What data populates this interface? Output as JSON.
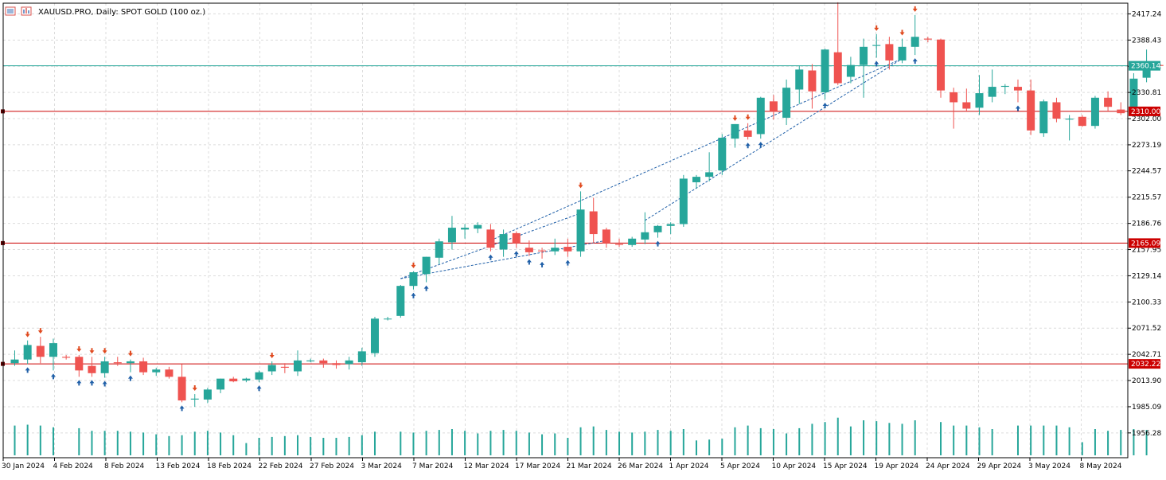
{
  "window": {
    "title": "XAUUSD.PRO, Daily:  SPOT GOLD (100 oz.)",
    "icons": [
      "chart-window-icon",
      "indicator-list-icon"
    ]
  },
  "colors": {
    "bull": "#26a69a",
    "bear": "#ef5350",
    "grid": "#dcdcdc",
    "level_line": "#cc0000",
    "bid_line": "#26a69a",
    "arrow_buy": "#1f5fa8",
    "arrow_sell": "#e04a1f",
    "trend_dash": "#1f5fa8"
  },
  "chart_data": {
    "type": "candlestick",
    "symbol": "XAUUSD.PRO",
    "timeframe": "Daily",
    "description": "SPOT GOLD (100 oz.)",
    "ylim": [
      1929,
      2429
    ],
    "grid": true,
    "y_ticks": [
      "2417.24",
      "2388.43",
      "2359.62",
      "2330.81",
      "2302.00",
      "2273.19",
      "2244.57",
      "2215.57",
      "2186.76",
      "2157.95",
      "2129.14",
      "2100.33",
      "2071.52",
      "2042.71",
      "2013.90",
      "1985.09",
      "1956.28"
    ],
    "x_ticks": [
      "30 Jan 2024",
      "4 Feb 2024",
      "8 Feb 2024",
      "13 Feb 2024",
      "18 Feb 2024",
      "22 Feb 2024",
      "27 Feb 2024",
      "3 Mar 2024",
      "7 Mar 2024",
      "12 Mar 2024",
      "17 Mar 2024",
      "21 Mar 2024",
      "26 Mar 2024",
      "1 Apr 2024",
      "5 Apr 2024",
      "10 Apr 2024",
      "15 Apr 2024",
      "19 Apr 2024",
      "24 Apr 2024",
      "29 Apr 2024",
      "3 May 2024",
      "8 May 2024"
    ],
    "current_price": "2360.14",
    "levels": [
      "2310.00",
      "2165.09",
      "2032.22"
    ],
    "candles": [
      {
        "o": 2033,
        "h": 2047,
        "l": 2030,
        "c": 2037,
        "v": 0.68
      },
      {
        "o": 2037,
        "h": 2058,
        "l": 2032,
        "c": 2053,
        "v": 0.7
      },
      {
        "o": 2052,
        "h": 2062,
        "l": 2033,
        "c": 2040,
        "v": 0.68
      },
      {
        "o": 2040,
        "h": 2060,
        "l": 2025,
        "c": 2055,
        "v": 0.64
      },
      {
        "o": 2040,
        "h": 2042,
        "l": 2037,
        "c": 2039,
        "v": 0.0
      },
      {
        "o": 2040,
        "h": 2042,
        "l": 2018,
        "c": 2025,
        "v": 0.62
      },
      {
        "o": 2030,
        "h": 2040,
        "l": 2018,
        "c": 2022,
        "v": 0.56
      },
      {
        "o": 2022,
        "h": 2040,
        "l": 2017,
        "c": 2035,
        "v": 0.56
      },
      {
        "o": 2034,
        "h": 2040,
        "l": 2030,
        "c": 2033,
        "v": 0.56
      },
      {
        "o": 2033,
        "h": 2037,
        "l": 2023,
        "c": 2035,
        "v": 0.54
      },
      {
        "o": 2035,
        "h": 2039,
        "l": 2020,
        "c": 2023,
        "v": 0.52
      },
      {
        "o": 2023,
        "h": 2028,
        "l": 2019,
        "c": 2026,
        "v": 0.48
      },
      {
        "o": 2026,
        "h": 2029,
        "l": 2016,
        "c": 2018,
        "v": 0.44
      },
      {
        "o": 2018,
        "h": 2032,
        "l": 1990,
        "c": 1992,
        "v": 0.46
      },
      {
        "o": 1993,
        "h": 1999,
        "l": 1985,
        "c": 1994,
        "v": 0.54
      },
      {
        "o": 1993,
        "h": 2006,
        "l": 1989,
        "c": 2004,
        "v": 0.56
      },
      {
        "o": 2004,
        "h": 2016,
        "l": 2000,
        "c": 2016,
        "v": 0.52
      },
      {
        "o": 2016,
        "h": 2018,
        "l": 2012,
        "c": 2013,
        "v": 0.46
      },
      {
        "o": 2014,
        "h": 2017,
        "l": 2012,
        "c": 2016,
        "v": 0.28
      },
      {
        "o": 2015,
        "h": 2025,
        "l": 2012,
        "c": 2023,
        "v": 0.4
      },
      {
        "o": 2024,
        "h": 2035,
        "l": 2020,
        "c": 2031,
        "v": 0.42
      },
      {
        "o": 2029,
        "h": 2033,
        "l": 2022,
        "c": 2028,
        "v": 0.44
      },
      {
        "o": 2024,
        "h": 2047,
        "l": 2019,
        "c": 2036,
        "v": 0.46
      },
      {
        "o": 2035,
        "h": 2038,
        "l": 2034,
        "c": 2036,
        "v": 0.42
      },
      {
        "o": 2036,
        "h": 2038,
        "l": 2028,
        "c": 2033,
        "v": 0.4
      },
      {
        "o": 2033,
        "h": 2036,
        "l": 2027,
        "c": 2031,
        "v": 0.4
      },
      {
        "o": 2032,
        "h": 2040,
        "l": 2026,
        "c": 2036,
        "v": 0.42
      },
      {
        "o": 2034,
        "h": 2050,
        "l": 2030,
        "c": 2046,
        "v": 0.46
      },
      {
        "o": 2044,
        "h": 2084,
        "l": 2040,
        "c": 2082,
        "v": 0.54
      },
      {
        "o": 2082,
        "h": 2084,
        "l": 2080,
        "c": 2082,
        "v": 0.0
      },
      {
        "o": 2085,
        "h": 2119,
        "l": 2083,
        "c": 2118,
        "v": 0.54
      },
      {
        "o": 2118,
        "h": 2134,
        "l": 2114,
        "c": 2133,
        "v": 0.52
      },
      {
        "o": 2131,
        "h": 2150,
        "l": 2122,
        "c": 2150,
        "v": 0.56
      },
      {
        "o": 2149,
        "h": 2170,
        "l": 2142,
        "c": 2167,
        "v": 0.58
      },
      {
        "o": 2166,
        "h": 2195,
        "l": 2158,
        "c": 2182,
        "v": 0.6
      },
      {
        "o": 2180,
        "h": 2186,
        "l": 2170,
        "c": 2182,
        "v": 0.56
      },
      {
        "o": 2181,
        "h": 2188,
        "l": 2176,
        "c": 2185,
        "v": 0.5
      },
      {
        "o": 2180,
        "h": 2186,
        "l": 2156,
        "c": 2160,
        "v": 0.56
      },
      {
        "o": 2158,
        "h": 2180,
        "l": 2150,
        "c": 2175,
        "v": 0.58
      },
      {
        "o": 2176,
        "h": 2178,
        "l": 2160,
        "c": 2165,
        "v": 0.56
      },
      {
        "o": 2160,
        "h": 2168,
        "l": 2151,
        "c": 2155,
        "v": 0.52
      },
      {
        "o": 2157,
        "h": 2160,
        "l": 2148,
        "c": 2156,
        "v": 0.48
      },
      {
        "o": 2156,
        "h": 2170,
        "l": 2152,
        "c": 2160,
        "v": 0.5
      },
      {
        "o": 2161,
        "h": 2170,
        "l": 2150,
        "c": 2156,
        "v": 0.4
      },
      {
        "o": 2156,
        "h": 2222,
        "l": 2150,
        "c": 2202,
        "v": 0.64
      },
      {
        "o": 2200,
        "h": 2215,
        "l": 2165,
        "c": 2175,
        "v": 0.66
      },
      {
        "o": 2180,
        "h": 2182,
        "l": 2160,
        "c": 2165,
        "v": 0.58
      },
      {
        "o": 2164,
        "h": 2170,
        "l": 2161,
        "c": 2163,
        "v": 0.54
      },
      {
        "o": 2163,
        "h": 2172,
        "l": 2161,
        "c": 2170,
        "v": 0.52
      },
      {
        "o": 2169,
        "h": 2199,
        "l": 2164,
        "c": 2177,
        "v": 0.54
      },
      {
        "o": 2177,
        "h": 2185,
        "l": 2171,
        "c": 2184,
        "v": 0.58
      },
      {
        "o": 2184,
        "h": 2188,
        "l": 2175,
        "c": 2186,
        "v": 0.56
      },
      {
        "o": 2186,
        "h": 2240,
        "l": 2183,
        "c": 2236,
        "v": 0.6
      },
      {
        "o": 2232,
        "h": 2240,
        "l": 2225,
        "c": 2238,
        "v": 0.34
      },
      {
        "o": 2238,
        "h": 2265,
        "l": 2233,
        "c": 2243,
        "v": 0.36
      },
      {
        "o": 2245,
        "h": 2285,
        "l": 2240,
        "c": 2281,
        "v": 0.38
      },
      {
        "o": 2280,
        "h": 2296,
        "l": 2270,
        "c": 2296,
        "v": 0.64
      },
      {
        "o": 2289,
        "h": 2297,
        "l": 2279,
        "c": 2282,
        "v": 0.68
      },
      {
        "o": 2285,
        "h": 2326,
        "l": 2280,
        "c": 2325,
        "v": 0.62
      },
      {
        "o": 2321,
        "h": 2328,
        "l": 2301,
        "c": 2310,
        "v": 0.6
      },
      {
        "o": 2303,
        "h": 2345,
        "l": 2295,
        "c": 2336,
        "v": 0.5
      },
      {
        "o": 2334,
        "h": 2360,
        "l": 2318,
        "c": 2356,
        "v": 0.62
      },
      {
        "o": 2355,
        "h": 2362,
        "l": 2313,
        "c": 2332,
        "v": 0.72
      },
      {
        "o": 2331,
        "h": 2379,
        "l": 2323,
        "c": 2378,
        "v": 0.76
      },
      {
        "o": 2375,
        "h": 2430,
        "l": 2339,
        "c": 2341,
        "v": 0.86
      },
      {
        "o": 2348,
        "h": 2370,
        "l": 2341,
        "c": 2361,
        "v": 0.66
      },
      {
        "o": 2361,
        "h": 2390,
        "l": 2325,
        "c": 2381,
        "v": 0.8
      },
      {
        "o": 2382,
        "h": 2395,
        "l": 2369,
        "c": 2383,
        "v": 0.78
      },
      {
        "o": 2384,
        "h": 2392,
        "l": 2356,
        "c": 2366,
        "v": 0.74
      },
      {
        "o": 2366,
        "h": 2390,
        "l": 2363,
        "c": 2381,
        "v": 0.72
      },
      {
        "o": 2381,
        "h": 2416,
        "l": 2372,
        "c": 2392,
        "v": 0.8
      },
      {
        "o": 2390,
        "h": 2392,
        "l": 2386,
        "c": 2389,
        "v": 0.0
      },
      {
        "o": 2389,
        "h": 2390,
        "l": 2325,
        "c": 2333,
        "v": 0.76
      },
      {
        "o": 2331,
        "h": 2336,
        "l": 2291,
        "c": 2320,
        "v": 0.68
      },
      {
        "o": 2320,
        "h": 2335,
        "l": 2310,
        "c": 2313,
        "v": 0.68
      },
      {
        "o": 2314,
        "h": 2350,
        "l": 2306,
        "c": 2330,
        "v": 0.64
      },
      {
        "o": 2326,
        "h": 2356,
        "l": 2320,
        "c": 2337,
        "v": 0.6
      },
      {
        "o": 2337,
        "h": 2340,
        "l": 2329,
        "c": 2338,
        "v": 0.0
      },
      {
        "o": 2337,
        "h": 2345,
        "l": 2320,
        "c": 2333,
        "v": 0.68
      },
      {
        "o": 2333,
        "h": 2345,
        "l": 2284,
        "c": 2289,
        "v": 0.68
      },
      {
        "o": 2286,
        "h": 2323,
        "l": 2282,
        "c": 2321,
        "v": 0.68
      },
      {
        "o": 2320,
        "h": 2325,
        "l": 2298,
        "c": 2302,
        "v": 0.68
      },
      {
        "o": 2301,
        "h": 2306,
        "l": 2278,
        "c": 2302,
        "v": 0.64
      },
      {
        "o": 2304,
        "h": 2306,
        "l": 2293,
        "c": 2294,
        "v": 0.3
      },
      {
        "o": 2294,
        "h": 2327,
        "l": 2291,
        "c": 2325,
        "v": 0.6
      },
      {
        "o": 2325,
        "h": 2332,
        "l": 2310,
        "c": 2315,
        "v": 0.56
      },
      {
        "o": 2312,
        "h": 2320,
        "l": 2306,
        "c": 2308,
        "v": 0.58
      },
      {
        "o": 2308,
        "h": 2352,
        "l": 2305,
        "c": 2346,
        "v": 0.6
      },
      {
        "o": 2347,
        "h": 2378,
        "l": 2342,
        "c": 2361,
        "v": 0.58
      },
      {
        "o": 2361,
        "h": 2363,
        "l": 2359,
        "c": 2360,
        "v": 0.0
      }
    ],
    "buy_arrows": [
      1,
      3,
      5,
      6,
      7,
      9,
      13,
      19,
      31,
      32,
      37,
      39,
      40,
      41,
      43,
      50,
      57,
      58,
      63,
      67,
      70,
      78
    ],
    "sell_arrows": [
      1,
      2,
      5,
      6,
      7,
      9,
      14,
      20,
      31,
      44,
      56,
      57,
      64,
      67,
      69,
      70
    ]
  }
}
